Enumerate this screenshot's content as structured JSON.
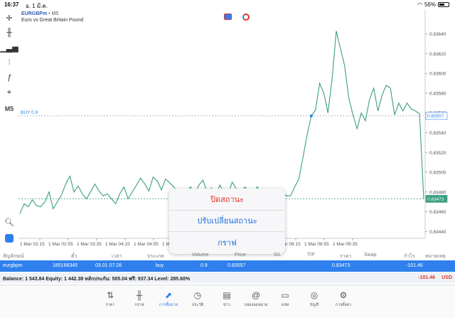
{
  "status_bar": {
    "time": "16:37",
    "date": "อ. 1 มี.ค.",
    "battery": "56%",
    "battery_level": 0.56
  },
  "chart_header": {
    "symbol": "EURGBPm",
    "timeframe": "• M5",
    "description": "Euro vs Great Britain Pound"
  },
  "toolbar": {
    "timeframe_label": "M5"
  },
  "chart_data": {
    "type": "line",
    "title": "",
    "xlabel": "",
    "ylabel": "",
    "color": "#3a9e80",
    "y_ticks": [
      "0.83640",
      "0.83620",
      "0.83600",
      "0.83580",
      "0.83560",
      "0.83540",
      "0.83520",
      "0.83500",
      "0.83480",
      "0.83460",
      "0.83440"
    ],
    "x_ticks": [
      "1 Mar 02:15",
      "1 Mar 02:55",
      "1 Mar 03:35",
      "1 Mar 04:15",
      "1 Mar 04:55",
      "1 Mar 05:35",
      "1 Mar 06:15",
      "1 Mar 06:55",
      "1 Mar 07:35",
      "1 Mar 08:15",
      "1 Mar 08:55",
      "1 Mar 09:35"
    ],
    "ylim": [
      0.83433,
      0.83665
    ],
    "values": [
      0.83458,
      0.83468,
      0.83465,
      0.83472,
      0.83466,
      0.83465,
      0.8347,
      0.8348,
      0.83463,
      0.8347,
      0.83477,
      0.83488,
      0.83496,
      0.8348,
      0.83486,
      0.83478,
      0.83473,
      0.8348,
      0.83488,
      0.83481,
      0.83476,
      0.83478,
      0.83473,
      0.83468,
      0.83478,
      0.83485,
      0.83473,
      0.8348,
      0.83487,
      0.83494,
      0.83488,
      0.83481,
      0.83495,
      0.83491,
      0.83482,
      0.83493,
      0.83489,
      0.83485,
      0.83477,
      0.83474,
      0.8348,
      0.83485,
      0.83477,
      0.83487,
      0.83492,
      0.83479,
      0.83484,
      0.83475,
      0.83487,
      0.8348,
      0.83477,
      0.8349,
      0.83483,
      0.83476,
      0.83485,
      0.83481,
      0.83478,
      0.83485,
      0.83479,
      0.83476,
      0.83483,
      0.83477,
      0.83474,
      0.8348,
      0.83476,
      0.83476,
      0.83485,
      0.83493,
      0.83515,
      0.83538,
      0.83557,
      0.83563,
      0.8359,
      0.8358,
      0.8356,
      0.83595,
      0.83643,
      0.83625,
      0.83608,
      0.83575,
      0.83558,
      0.83544,
      0.8356,
      0.83552,
      0.83574,
      0.83585,
      0.83562,
      0.83578,
      0.83588,
      0.83585,
      0.83558,
      0.8357,
      0.83562,
      0.8357,
      0.83564,
      0.83562,
      0.83559,
      0.83473
    ],
    "price_lines": [
      {
        "label": "BUY 0.9",
        "value": 0.83557,
        "tag": "0.83557"
      },
      {
        "label": "",
        "value": 0.83473,
        "tag": "0.83473"
      }
    ]
  },
  "popup": {
    "options": [
      "ปิดสถานะ",
      "ปรับเปลี่ยนสถานะ",
      "กราฟ"
    ]
  },
  "table": {
    "columns": [
      "สัญลักษณ์",
      "ตั๋ว",
      "เวลา",
      "ประเภท",
      "Volume",
      "Price",
      "S/L",
      "T/P",
      "ราคา",
      "Swap",
      "กำไร",
      "หมายเหตุ"
    ],
    "row": {
      "symbol": "eurgbpm",
      "ticket": "185166345",
      "time": "03.01 07:28",
      "type": "buy",
      "volume": "0.9",
      "price": "0.83557",
      "current": "0.83473",
      "profit": "-101.46"
    }
  },
  "summary": {
    "text": "Balance: 1 543.84 Equity: 1 442.38 หลักประกัน: 505.04 ฟรี: 937.34 Level: 285.60%",
    "profit": "-101.46",
    "currency": "USD"
  },
  "tabs": [
    {
      "icon": "quotes-icon",
      "label": "ราคา"
    },
    {
      "icon": "chart-icon",
      "label": "กราฟ"
    },
    {
      "icon": "trade-icon",
      "label": "การซื้อขาย",
      "active": true
    },
    {
      "icon": "history-icon",
      "label": "ประวัติ"
    },
    {
      "icon": "news-icon",
      "label": "ข่าว"
    },
    {
      "icon": "mailbox-icon",
      "label": "กล่องจดหมาย"
    },
    {
      "icon": "chat-icon",
      "label": "แชท"
    },
    {
      "icon": "account-icon",
      "label": "บัญชี"
    },
    {
      "icon": "settings-icon",
      "label": "การตั้งค่า"
    }
  ]
}
